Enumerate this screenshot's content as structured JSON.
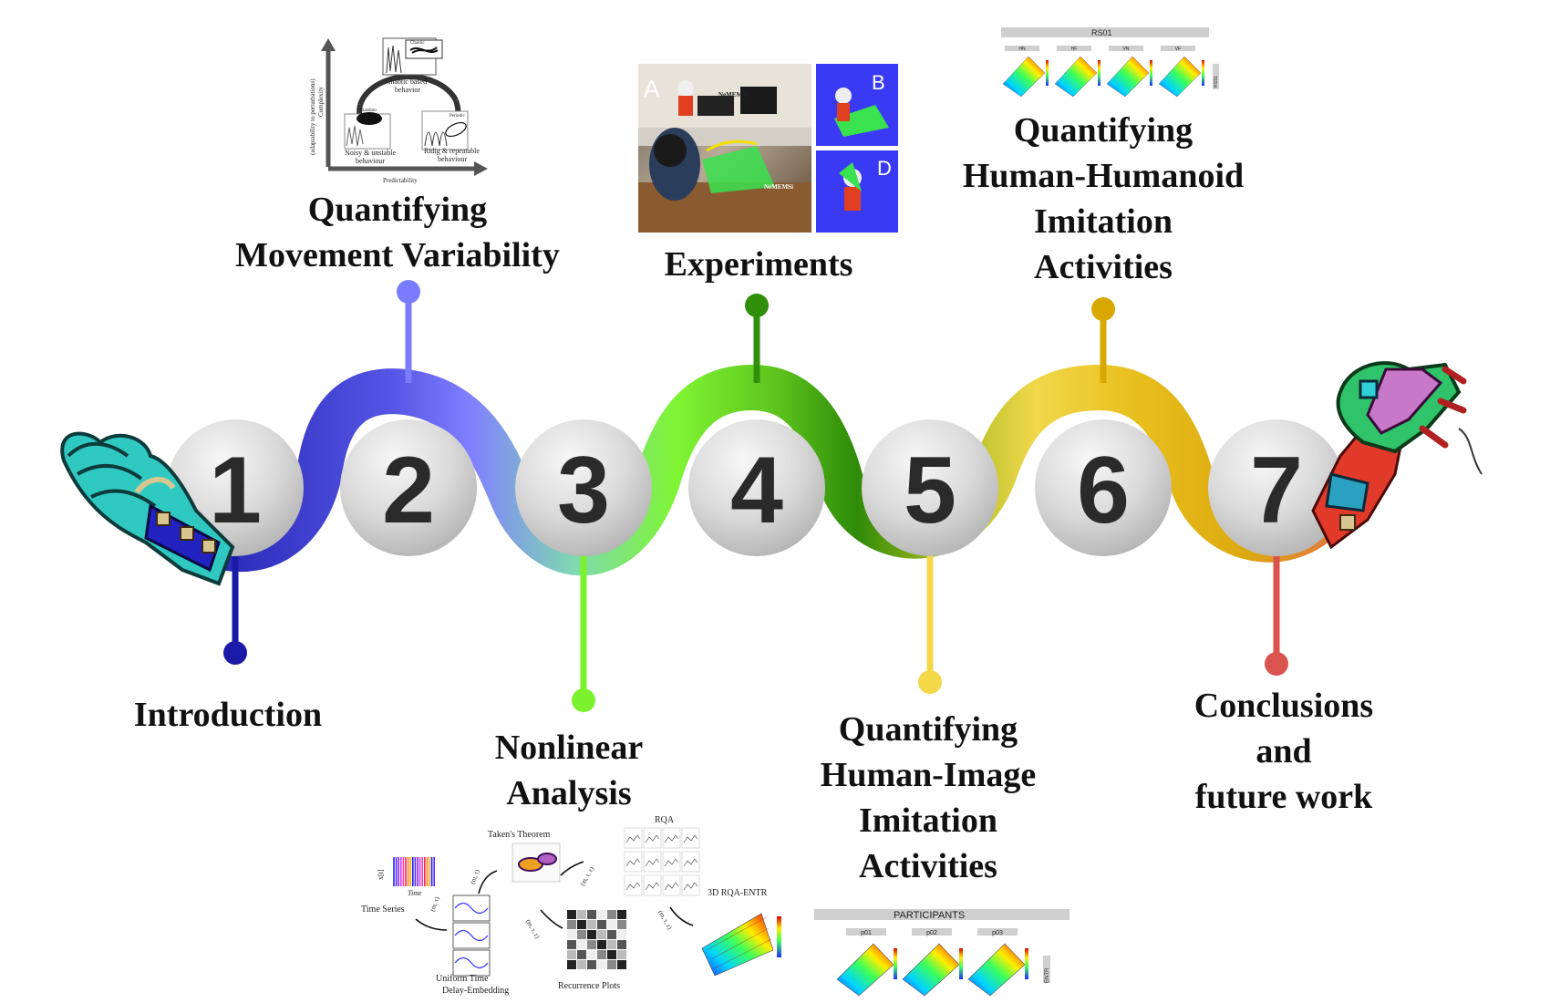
{
  "stages": [
    {
      "number": "1",
      "lines": [
        "Introduction"
      ],
      "color": "#1a1aa8"
    },
    {
      "number": "2",
      "lines": [
        "Quantifying",
        "Movement Variability"
      ],
      "color": "#7b7bff"
    },
    {
      "number": "3",
      "lines": [
        "Nonlinear",
        "Analysis"
      ],
      "color": "#7cf22e"
    },
    {
      "number": "4",
      "lines": [
        "Experiments"
      ],
      "color": "#2f8f0a"
    },
    {
      "number": "5",
      "lines": [
        "Quantifying",
        "Human-Image",
        "Imitation",
        "Activities"
      ],
      "color": "#f5d84a"
    },
    {
      "number": "6",
      "lines": [
        "Quantifying",
        "Human-Humanoid",
        "Imitation",
        "Activities"
      ],
      "color": "#d8a800"
    },
    {
      "number": "7",
      "lines": [
        "Conclusions",
        "and",
        "future work"
      ],
      "color": "#d9534f"
    }
  ],
  "variability_fig": {
    "y_axis_label": "(adaptability to perturbations)",
    "y_axis_label2": "Complexity",
    "x_axis_label": "Predictability",
    "chaotic": [
      "Chaotic based",
      "behavior"
    ],
    "noisy": [
      "Noisy & unstable",
      "behaviour"
    ],
    "rigid": [
      "Ridig & repeatable",
      "behaviour"
    ],
    "inset_random": "Random",
    "inset_chaotic": "Chaotic",
    "inset_periodic": "Periodic"
  },
  "experiments_fig": {
    "panel_a": "A",
    "panel_b": "B",
    "panel_d": "D",
    "device_label": "NeMEMSi"
  },
  "humanoid_fig": {
    "header": "RS01",
    "columns": [
      "HN",
      "HF",
      "VN",
      "VF"
    ],
    "side_label": "RSS1"
  },
  "participants_fig": {
    "header": "PARTICIPANTS",
    "columns": [
      "p01",
      "p02",
      "p03"
    ],
    "side_label": "ENTR"
  },
  "nonlinear_fig": {
    "time_series": "Time Series",
    "time_axis": "Time",
    "xt": "x[t]",
    "embedding": [
      "Uniform Time",
      "Delay-Embedding"
    ],
    "takens": "Taken's Theorem",
    "recurrence": "Recurrence Plots",
    "rqa": "RQA",
    "rqa_entr": "3D RQA-ENTR",
    "param_m_tau": "(m, τ)",
    "param_m_tau_eps": "(m, τ, ε)"
  }
}
